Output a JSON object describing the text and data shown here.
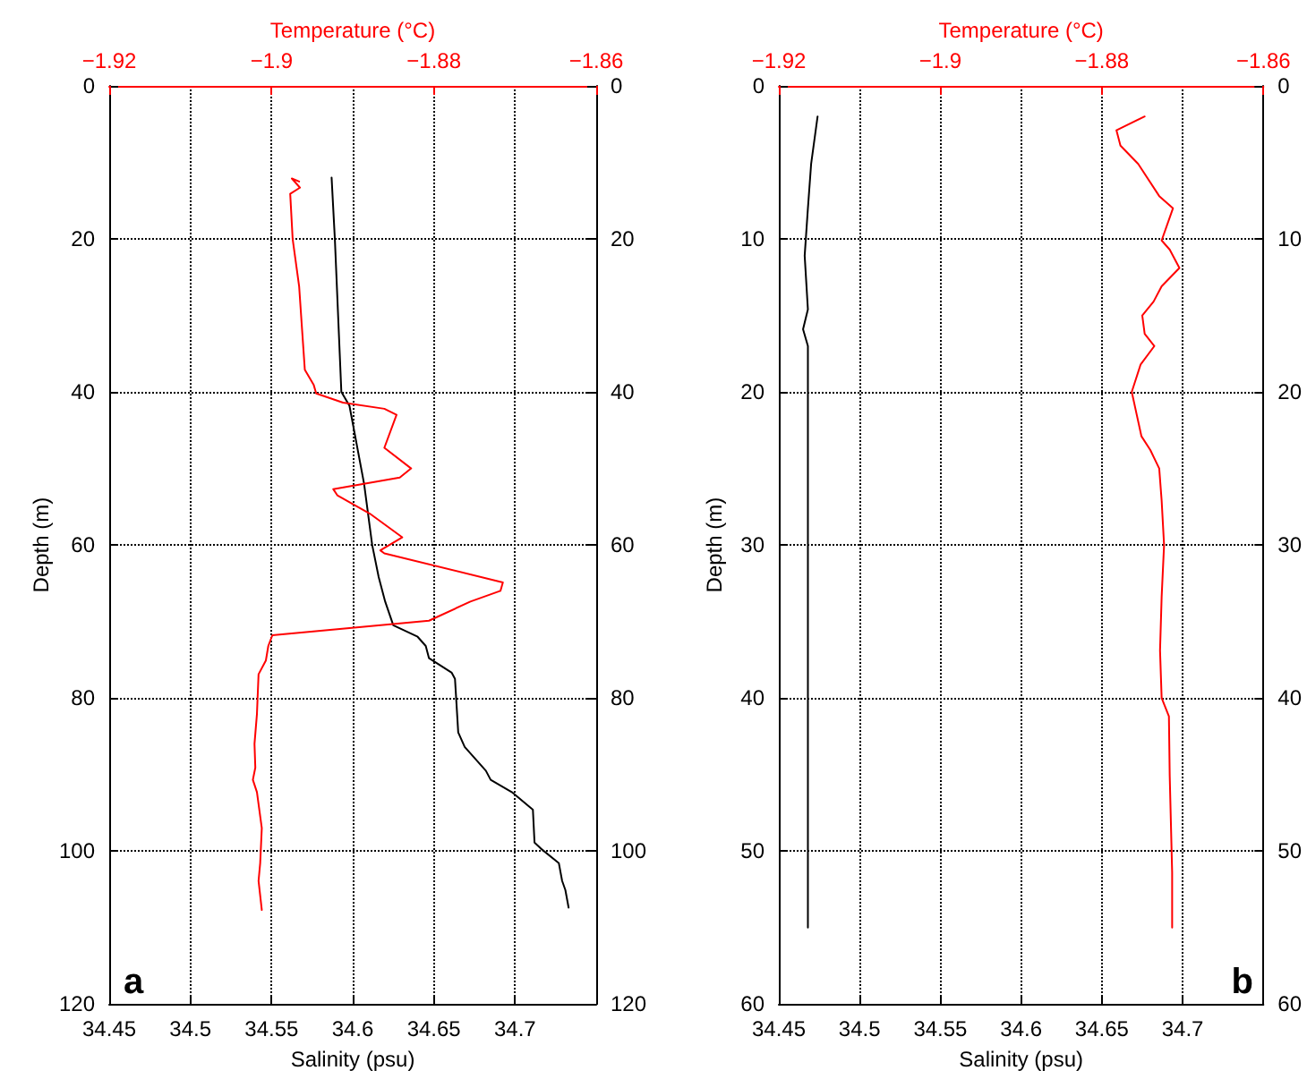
{
  "chart_data": [
    {
      "type": "line",
      "xlabel": "Salinity (psu)",
      "x2label": "Temperature (°C)",
      "ylabel": "Depth (m)",
      "annotations": [
        "a"
      ],
      "xlim": [
        34.45,
        34.75
      ],
      "xticks": [
        34.45,
        34.5,
        34.55,
        34.6,
        34.65,
        34.7
      ],
      "x2lim": [
        -1.92,
        -1.86
      ],
      "x2ticks": [
        {
          "value": -1.92,
          "label": "−1.92"
        },
        {
          "value": -1.9,
          "label": "−1.9"
        },
        {
          "value": -1.88,
          "label": "−1.88"
        },
        {
          "value": -1.86,
          "label": "−1.86"
        }
      ],
      "ylim": [
        120,
        0
      ],
      "yticks": [
        0,
        20,
        40,
        60,
        80,
        100,
        120
      ],
      "y2lim": [
        120,
        0
      ],
      "y2ticks": [
        0,
        20,
        40,
        60,
        80,
        100,
        120
      ],
      "grid": true,
      "marker": "none",
      "series": [
        {
          "color": "#000000",
          "x": [
            34.587,
            34.589,
            34.593,
            34.598,
            34.607,
            34.612,
            34.616,
            34.62,
            34.625,
            34.64,
            34.645,
            34.647,
            34.661,
            34.663,
            34.665,
            34.669,
            34.682,
            34.685,
            34.698,
            34.711,
            34.712,
            34.716,
            34.727,
            34.729,
            34.731,
            34.733
          ],
          "values": [
            12,
            20,
            40,
            41.8,
            52,
            60,
            64.2,
            67.4,
            70.5,
            72,
            73.2,
            74.8,
            76.7,
            77.5,
            84.5,
            86.4,
            89.5,
            90.7,
            92.3,
            94.6,
            98.9,
            99.7,
            101.6,
            103.9,
            105.1,
            107.4
          ]
        },
        {
          "color": "#ff0000",
          "axis": "x2",
          "x": [
            -1.8966,
            -1.8975,
            -1.8965,
            -1.8977,
            -1.8974,
            -1.8966,
            -1.8963,
            -1.8959,
            -1.8948,
            -1.8945,
            -1.8912,
            -1.8861,
            -1.8846,
            -1.8861,
            -1.8828,
            -1.8842,
            -1.8924,
            -1.8919,
            -1.8879,
            -1.8839,
            -1.8866,
            -1.8861,
            -1.8715,
            -1.8718,
            -1.8755,
            -1.8806,
            -1.8999,
            -1.9004,
            -1.9007,
            -1.9016,
            -1.9018,
            -1.9021,
            -1.902,
            -1.9023,
            -1.9018,
            -1.9012,
            -1.9014,
            -1.9016,
            -1.9012
          ],
          "values": [
            12.5,
            12.1,
            13.3,
            14.1,
            20,
            26.2,
            30.9,
            37.1,
            39.1,
            40.2,
            41.4,
            42.2,
            43,
            47.3,
            50,
            51.2,
            52.7,
            53.5,
            55.9,
            59,
            60.7,
            61.1,
            64.9,
            66,
            67.4,
            69.9,
            71.8,
            73.2,
            75.1,
            76.9,
            82.1,
            86,
            89.1,
            90.7,
            92.3,
            97,
            101.6,
            103.9,
            107.7
          ]
        }
      ]
    },
    {
      "type": "line",
      "xlabel": "Salinity (psu)",
      "x2label": "Temperature (°C)",
      "ylabel": "Depth (m)",
      "annotations": [
        "b"
      ],
      "xlim": [
        34.45,
        34.75
      ],
      "xticks": [
        34.45,
        34.5,
        34.55,
        34.6,
        34.65,
        34.7
      ],
      "x2lim": [
        -1.92,
        -1.86
      ],
      "x2ticks": [
        {
          "value": -1.92,
          "label": "−1.92"
        },
        {
          "value": -1.9,
          "label": "−1.9"
        },
        {
          "value": -1.88,
          "label": "−1.88"
        },
        {
          "value": -1.86,
          "label": "−1.86"
        }
      ],
      "ylim": [
        60,
        0
      ],
      "yticks": [
        0,
        10,
        20,
        30,
        40,
        50,
        60
      ],
      "y2lim": [
        60,
        0
      ],
      "y2ticks": [
        0,
        10,
        20,
        30,
        40,
        50,
        60
      ],
      "grid": true,
      "marker": "none",
      "series": [
        {
          "color": "#000000",
          "x": [
            34.474,
            34.47,
            34.468,
            34.466,
            34.468,
            34.465,
            34.468,
            34.468,
            34.468,
            34.468
          ],
          "values": [
            2,
            5.1,
            8,
            11.1,
            14.6,
            15.9,
            17,
            22.5,
            30,
            55
          ]
        },
        {
          "color": "#ff0000",
          "axis": "x2",
          "x": [
            -1.8747,
            -1.8782,
            -1.8777,
            -1.8755,
            -1.8729,
            -1.8712,
            -1.8726,
            -1.8716,
            -1.8704,
            -1.8726,
            -1.8736,
            -1.875,
            -1.8747,
            -1.8735,
            -1.8752,
            -1.8763,
            -1.8751,
            -1.874,
            -1.8729,
            -1.8726,
            -1.8723,
            -1.8726,
            -1.8728,
            -1.8726,
            -1.8717,
            -1.8716,
            -1.8713,
            -1.8713
          ],
          "values": [
            2,
            2.9,
            3.9,
            5.1,
            7.2,
            8,
            10.1,
            10.7,
            11.9,
            13.1,
            14.1,
            15,
            16.2,
            17,
            18.2,
            20,
            22.9,
            23.8,
            25,
            27.1,
            30,
            33.4,
            36.9,
            40,
            41.2,
            45.1,
            51.4,
            55
          ]
        }
      ]
    }
  ]
}
